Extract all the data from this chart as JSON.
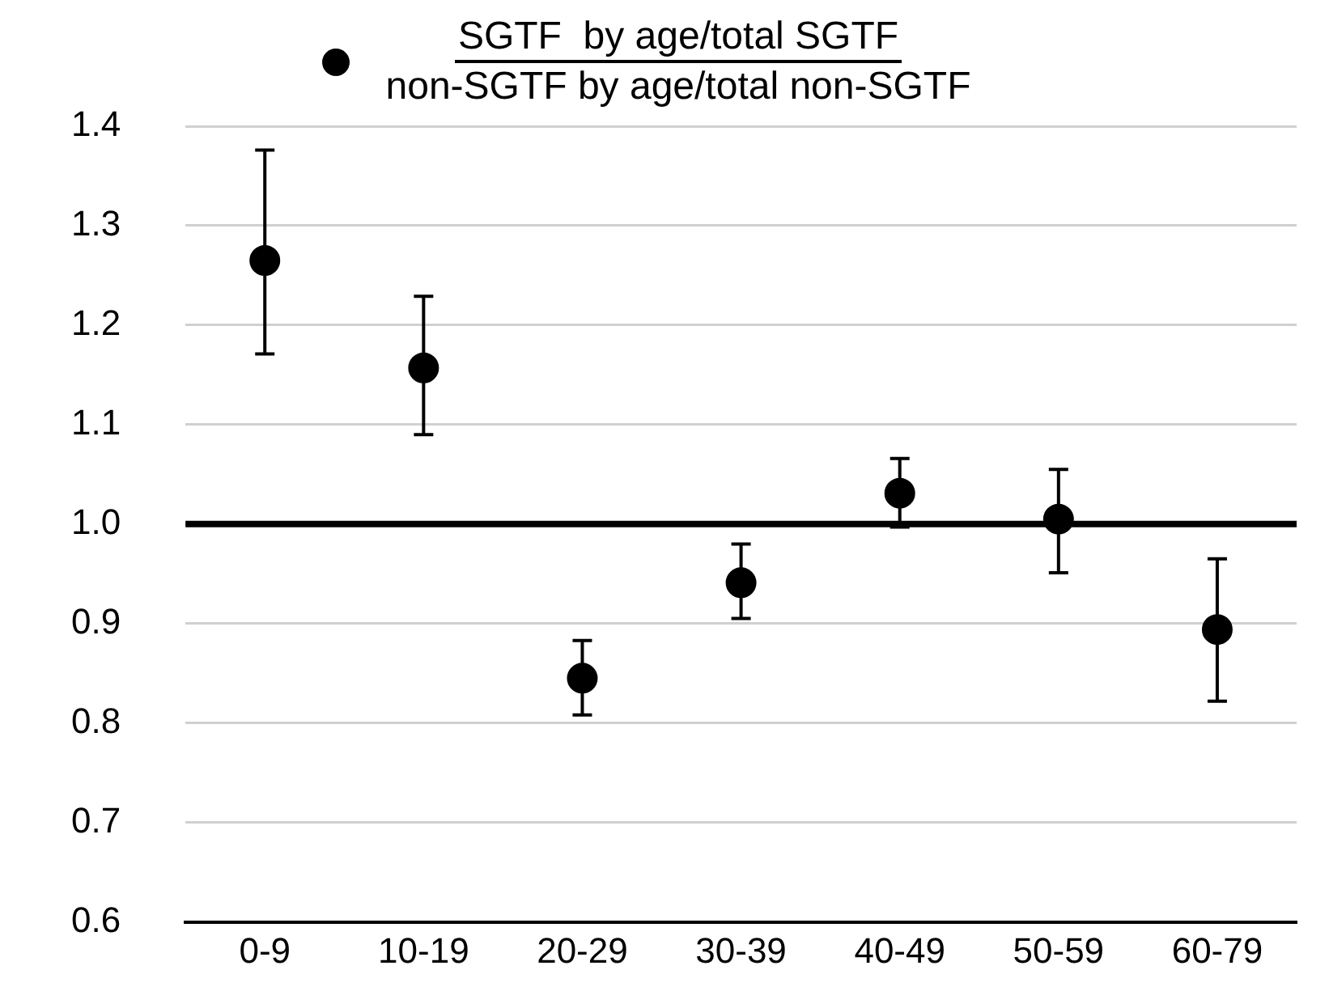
{
  "chart_data": {
    "type": "scatter",
    "categories": [
      "0-9",
      "10-19",
      "20-29",
      "30-39",
      "40-49",
      "50-59",
      "60-79"
    ],
    "series": [
      {
        "name": "SGTF  by age/total SGTF\nnon-SGTF by age/total non-SGTF",
        "color": "#000000",
        "values": [
          1.265,
          1.157,
          0.845,
          0.941,
          1.031,
          1.005,
          0.894
        ],
        "errors": [
          [
            1.171,
            1.376
          ],
          [
            1.09,
            1.229
          ],
          [
            0.808,
            0.883
          ],
          [
            0.905,
            0.98
          ],
          [
            0.997,
            1.066
          ],
          [
            0.951,
            1.055
          ],
          [
            0.822,
            0.965
          ]
        ]
      }
    ],
    "ylim": [
      0.6,
      1.4
    ],
    "yticks": [
      {
        "value": 0.6,
        "label": "0.6"
      },
      {
        "value": 0.7,
        "label": "0.7"
      },
      {
        "value": 0.8,
        "label": "0.8"
      },
      {
        "value": 0.9,
        "label": "0.9"
      },
      {
        "value": 1.0,
        "label": "1.0"
      },
      {
        "value": 1.1,
        "label": "1.1"
      },
      {
        "value": 1.2,
        "label": "1.2"
      },
      {
        "value": 1.3,
        "label": "1.3"
      },
      {
        "value": 1.4,
        "label": "1.4"
      }
    ],
    "ref_lines": [
      {
        "axis": "y",
        "value": 1.0,
        "color": "#000000"
      }
    ],
    "grid": "y",
    "legend": "top",
    "marker": "circle"
  }
}
